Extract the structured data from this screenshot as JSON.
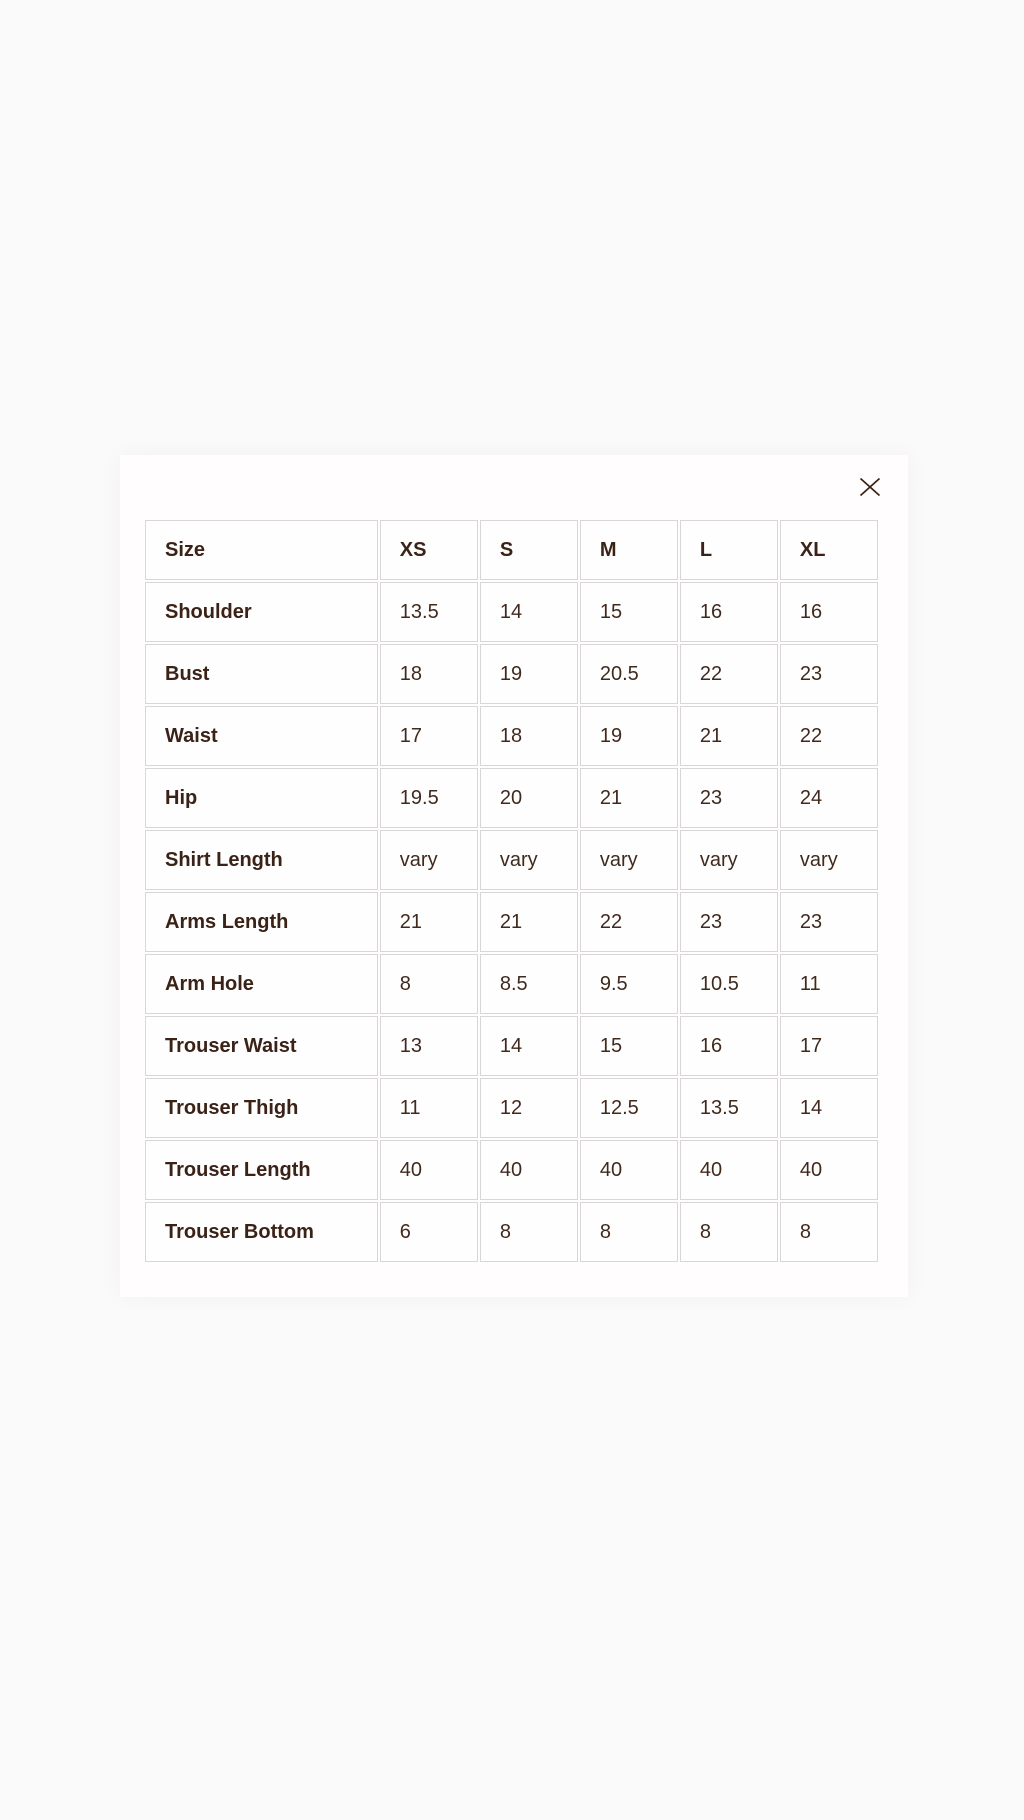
{
  "colors": {
    "page_background": "#fbfafa",
    "modal_background": "#fffdfd",
    "text_brown": "#3b2217",
    "cell_border": "#d9d7d6"
  },
  "modal": {
    "close_icon": "close-x"
  },
  "size_chart": {
    "header": [
      "Size",
      "XS",
      "S",
      "M",
      "L",
      "XL"
    ],
    "rows": [
      {
        "label": "Shoulder",
        "values": [
          "13.5",
          "14",
          "15",
          "16",
          "16"
        ]
      },
      {
        "label": "Bust",
        "values": [
          "18",
          "19",
          "20.5",
          "22",
          "23"
        ]
      },
      {
        "label": "Waist",
        "values": [
          "17",
          "18",
          "19",
          "21",
          "22"
        ]
      },
      {
        "label": "Hip",
        "values": [
          "19.5",
          "20",
          "21",
          "23",
          "24"
        ]
      },
      {
        "label": "Shirt Length",
        "values": [
          "vary",
          "vary",
          "vary",
          "vary",
          "vary"
        ]
      },
      {
        "label": "Arms Length",
        "values": [
          "21",
          "21",
          "22",
          "23",
          "23"
        ]
      },
      {
        "label": "Arm Hole",
        "values": [
          "8",
          "8.5",
          "9.5",
          "10.5",
          "11"
        ]
      },
      {
        "label": "Trouser Waist",
        "values": [
          "13",
          "14",
          "15",
          "16",
          "17"
        ]
      },
      {
        "label": "Trouser Thigh",
        "values": [
          "11",
          "12",
          "12.5",
          "13.5",
          "14"
        ]
      },
      {
        "label": "Trouser Length",
        "values": [
          "40",
          "40",
          "40",
          "40",
          "40"
        ]
      },
      {
        "label": "Trouser Bottom",
        "values": [
          "6",
          "8",
          "8",
          "8",
          "8"
        ]
      }
    ]
  }
}
